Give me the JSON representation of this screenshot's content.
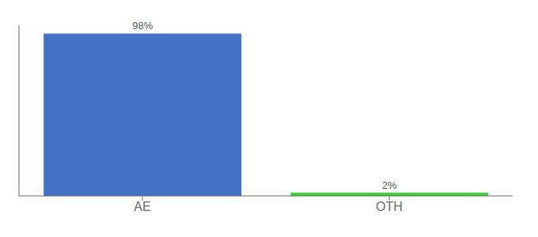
{
  "chart_data": {
    "type": "bar",
    "categories": [
      "AE",
      "OTH"
    ],
    "values": [
      98,
      2
    ],
    "value_labels": [
      "98%",
      "2%"
    ],
    "data_labels": true,
    "colors": [
      "#4472c4",
      "#3ecf3e"
    ],
    "ylim": [
      0,
      103
    ],
    "tick_labels": "x",
    "grid": false
  }
}
